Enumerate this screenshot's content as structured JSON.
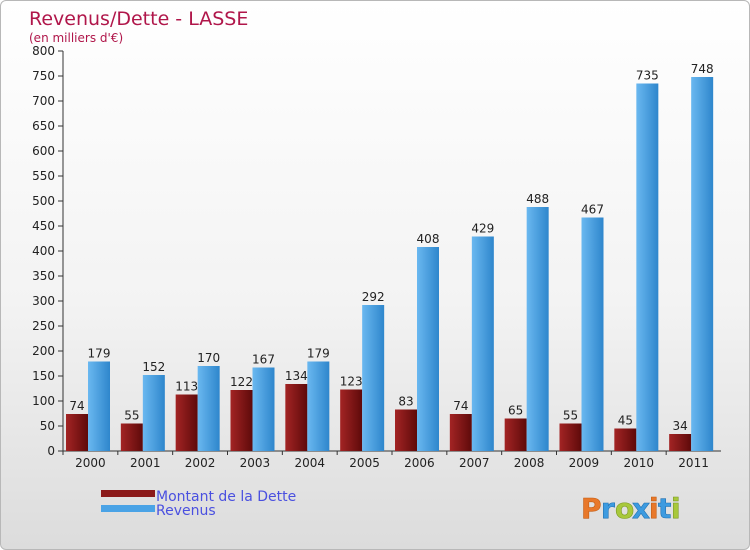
{
  "chart_data": {
    "type": "bar",
    "title": "Revenus/Dette - LASSE",
    "subtitle": "(en milliers d'€)",
    "categories": [
      "2000",
      "2001",
      "2002",
      "2003",
      "2004",
      "2005",
      "2006",
      "2007",
      "2008",
      "2009",
      "2010",
      "2011"
    ],
    "series": [
      {
        "name": "Montant de la Dette",
        "color": "#8b1a1a",
        "values": [
          74,
          55,
          113,
          122,
          134,
          123,
          83,
          74,
          65,
          55,
          45,
          34
        ]
      },
      {
        "name": "Revenus",
        "color": "#4aa3e6",
        "values": [
          179,
          152,
          170,
          167,
          179,
          292,
          408,
          429,
          488,
          467,
          735,
          748
        ]
      }
    ],
    "ylim": [
      0,
      800
    ],
    "yticks": [
      0,
      50,
      100,
      150,
      200,
      250,
      300,
      350,
      400,
      450,
      500,
      550,
      600,
      650,
      700,
      750,
      800
    ],
    "legend_position": "bottom-left",
    "grid": false
  },
  "brand": {
    "text": "Proxiti"
  }
}
